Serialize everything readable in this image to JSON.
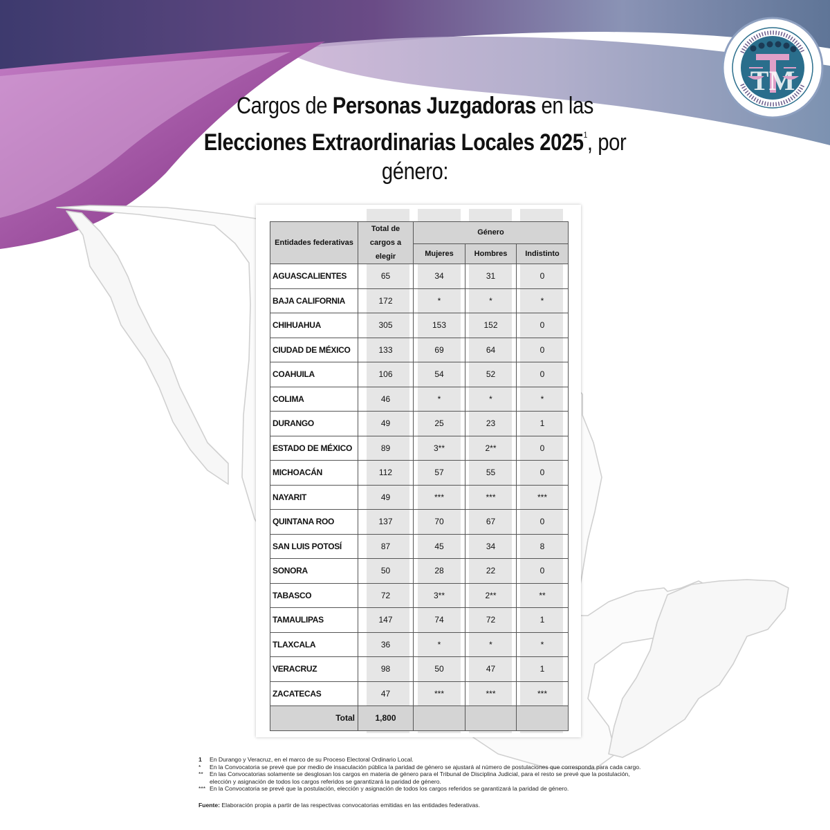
{
  "header": {
    "title_pre": "Cargos de ",
    "title_bold1": "Personas Juzgadoras",
    "title_mid": " en las",
    "title_bold2": "Elecciones Extraordinarias Locales 2025",
    "title_sup": "1",
    "title_end": ", por género:"
  },
  "logo": {
    "icon": "association-seal-icon",
    "ring_text": "Asociación de Magistradas y Magistrados Electorales Locales de los Estados Unidos Mexicanos",
    "monogram": "TM"
  },
  "colors": {
    "purple": "#a4539e",
    "magenta": "#c07fc0",
    "lavender": "#c8a6cf",
    "navy": "#3a4b76",
    "steel": "#7a8fad",
    "logo_teal": "#2a6e8c",
    "logo_pink": "#e0a0c8",
    "table_header": "#d4d4d4"
  },
  "table": {
    "headers": {
      "entity": "Entidades federativas",
      "total": "Total de cargos a elegir",
      "gender": "Género",
      "women": "Mujeres",
      "men": "Hombres",
      "indistinct": "Indistinto"
    },
    "rows": [
      {
        "entity": "AGUASCALIENTES",
        "total": "65",
        "women": "34",
        "men": "31",
        "indistinct": "0"
      },
      {
        "entity": "BAJA CALIFORNIA",
        "total": "172",
        "women": "*",
        "men": "*",
        "indistinct": "*"
      },
      {
        "entity": "CHIHUAHUA",
        "total": "305",
        "women": "153",
        "men": "152",
        "indistinct": "0"
      },
      {
        "entity": "CIUDAD DE MÉXICO",
        "total": "133",
        "women": "69",
        "men": "64",
        "indistinct": "0"
      },
      {
        "entity": "COAHUILA",
        "total": "106",
        "women": "54",
        "men": "52",
        "indistinct": "0"
      },
      {
        "entity": "COLIMA",
        "total": "46",
        "women": "*",
        "men": "*",
        "indistinct": "*"
      },
      {
        "entity": "DURANGO",
        "total": "49",
        "women": "25",
        "men": "23",
        "indistinct": "1"
      },
      {
        "entity": "ESTADO DE MÉXICO",
        "total": "89",
        "women": "3**",
        "men": "2**",
        "indistinct": "0"
      },
      {
        "entity": "MICHOACÁN",
        "total": "112",
        "women": "57",
        "men": "55",
        "indistinct": "0"
      },
      {
        "entity": "NAYARIT",
        "total": "49",
        "women": "***",
        "men": "***",
        "indistinct": "***"
      },
      {
        "entity": "QUINTANA ROO",
        "total": "137",
        "women": "70",
        "men": "67",
        "indistinct": "0"
      },
      {
        "entity": "SAN LUIS POTOSÍ",
        "total": "87",
        "women": "45",
        "men": "34",
        "indistinct": "8"
      },
      {
        "entity": "SONORA",
        "total": "50",
        "women": "28",
        "men": "22",
        "indistinct": "0"
      },
      {
        "entity": "TABASCO",
        "total": "72",
        "women": "3**",
        "men": "2**",
        "indistinct": "**"
      },
      {
        "entity": "TAMAULIPAS",
        "total": "147",
        "women": "74",
        "men": "72",
        "indistinct": "1"
      },
      {
        "entity": "TLAXCALA",
        "total": "36",
        "women": "*",
        "men": "*",
        "indistinct": "*"
      },
      {
        "entity": "VERACRUZ",
        "total": "98",
        "women": "50",
        "men": "47",
        "indistinct": "1"
      },
      {
        "entity": "ZACATECAS",
        "total": "47",
        "women": "***",
        "men": "***",
        "indistinct": "***"
      }
    ],
    "total_label": "Total",
    "total_value": "1,800"
  },
  "footnotes": [
    {
      "mark": "1",
      "text": "En Durango y Veracruz, en el marco de su Proceso Electoral Ordinario Local."
    },
    {
      "mark": "*",
      "text": "En la Convocatoria se prevé que por medio de insaculación pública la paridad de género se ajustará al número de postulaciones que corresponda para cada cargo."
    },
    {
      "mark": "**",
      "text": "En las Convocatorias solamente se desglosan los cargos en materia de género para el Tribunal de Disciplina Judicial, para el resto se prevé que la postulación, elección y asignación de todos los cargos referidos se garantizará la paridad de género."
    },
    {
      "mark": "***",
      "text": "En la Convocatoria se prevé que la postulación, elección y asignación de todos los cargos referidos se garantizará la paridad de género."
    }
  ],
  "source": {
    "label": "Fuente:",
    "text": "Elaboración propia a partir de las respectivas convocatorias emitidas en las entidades federativas."
  }
}
